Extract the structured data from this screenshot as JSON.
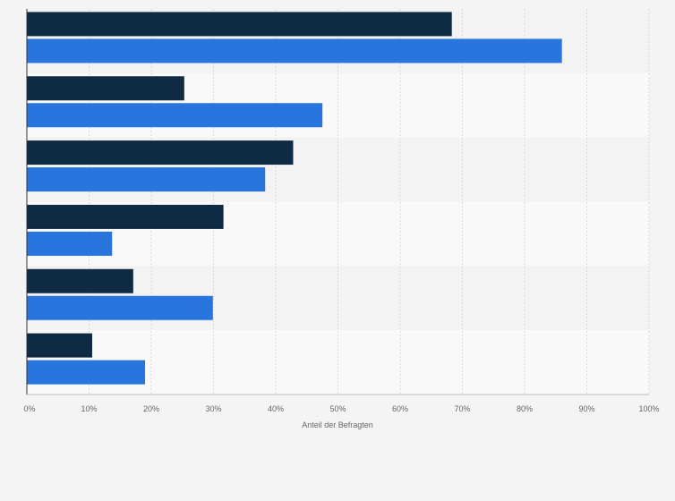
{
  "chart_data": {
    "type": "bar",
    "orientation": "horizontal",
    "categories": [
      "",
      "",
      "",
      "",
      "",
      ""
    ],
    "series": [
      {
        "values": [
          68.3,
          25.3,
          42.8,
          31.6,
          17.1,
          10.5
        ],
        "color": "#0f2a43"
      },
      {
        "values": [
          86.0,
          47.5,
          38.3,
          13.7,
          29.9,
          19.0
        ],
        "color": "#2876dd"
      }
    ],
    "xlim": [
      0,
      100
    ],
    "x_ticks": [
      "0%",
      "10%",
      "20%",
      "30%",
      "40%",
      "50%",
      "60%",
      "70%",
      "80%",
      "90%",
      "100%"
    ],
    "xlabel": "Anteil der Befragten",
    "grid": true,
    "colors": {
      "band_light": "#f9f9f9",
      "band_dark": "#f3f3f3",
      "grid": "#d9d9d9",
      "axis": "#333333"
    }
  }
}
